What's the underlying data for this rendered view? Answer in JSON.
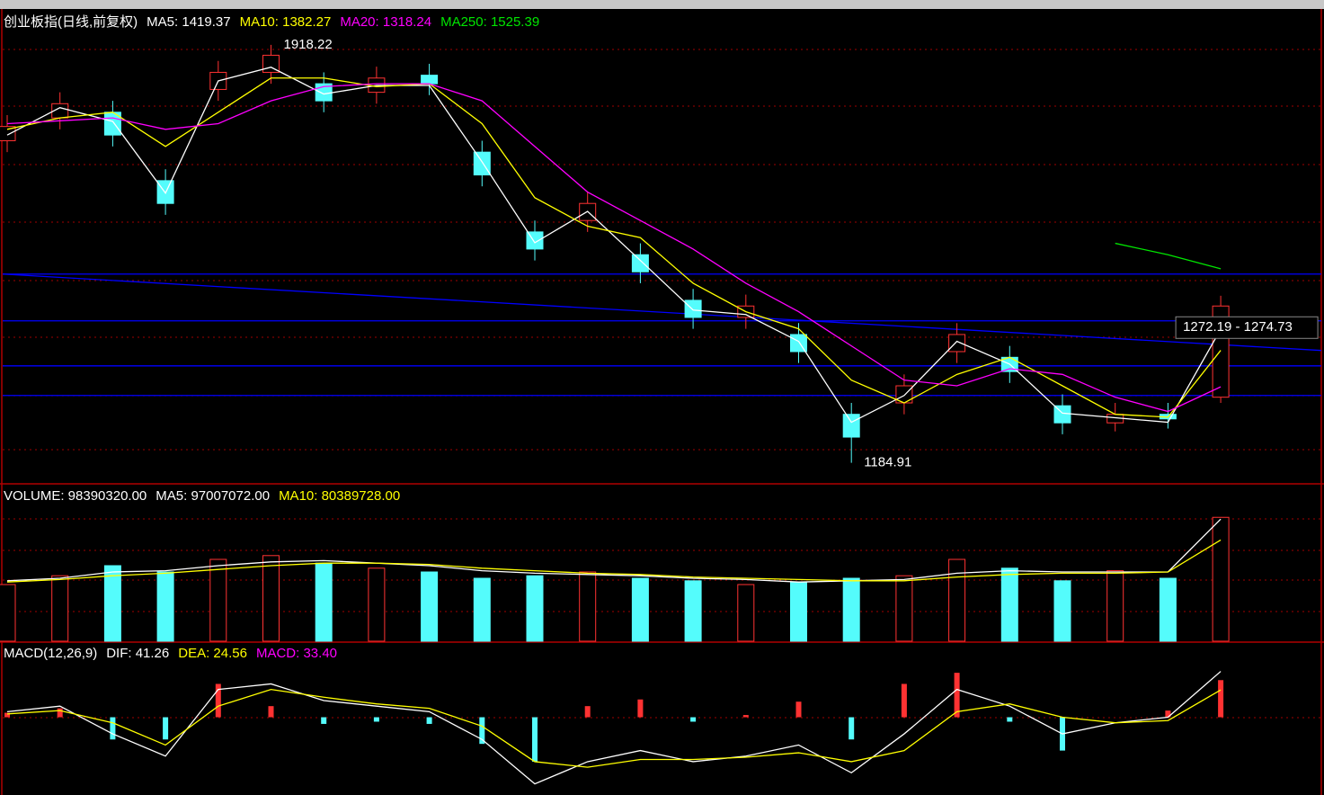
{
  "chart_data": [
    {
      "type": "candlestick",
      "title": "创业板指(日线,前复权)",
      "open": [
        1750,
        1790,
        1800,
        1680,
        1840,
        1870,
        1850,
        1835,
        1865,
        1730,
        1590,
        1610,
        1550,
        1470,
        1440,
        1410,
        1270,
        1290,
        1380,
        1370,
        1285,
        1255,
        1270,
        1300
      ],
      "high": [
        1795,
        1835,
        1820,
        1700,
        1890,
        1918.22,
        1870,
        1880,
        1885,
        1750,
        1610,
        1660,
        1570,
        1490,
        1480,
        1430,
        1290,
        1340,
        1430,
        1390,
        1305,
        1290,
        1290,
        1478
      ],
      "low": [
        1730,
        1770,
        1740,
        1620,
        1820,
        1850,
        1800,
        1815,
        1830,
        1670,
        1540,
        1590,
        1500,
        1420,
        1420,
        1360,
        1184.91,
        1270,
        1360,
        1325,
        1235,
        1240,
        1245,
        1290
      ],
      "close": [
        1775,
        1815,
        1760,
        1640,
        1870,
        1900,
        1820,
        1860,
        1850,
        1690,
        1560,
        1640,
        1520,
        1440,
        1460,
        1380,
        1230,
        1320,
        1410,
        1345,
        1255,
        1270,
        1262,
        1460
      ],
      "up_color": "#ff3232",
      "down_color": "#54fcfc",
      "series": [
        {
          "name": "MA5: 1419.37",
          "color": "#ffffff",
          "values": [
            1760,
            1808,
            1784,
            1658,
            1855,
            1879,
            1832,
            1847,
            1847,
            1713,
            1571,
            1626,
            1540,
            1453,
            1445,
            1398,
            1256,
            1303,
            1398,
            1358,
            1272,
            1264,
            1256,
            1419.37
          ]
        },
        {
          "name": "MA10: 1382.27",
          "color": "#ffff00",
          "values": [
            1770,
            1790,
            1800,
            1740,
            1800,
            1860,
            1860,
            1845,
            1850,
            1780,
            1650,
            1600,
            1580,
            1500,
            1450,
            1420,
            1330,
            1290,
            1340,
            1370,
            1320,
            1270,
            1265,
            1382.27
          ]
        },
        {
          "name": "MA20: 1318.24",
          "color": "#ff00ff",
          "values": [
            1780,
            1785,
            1790,
            1770,
            1780,
            1820,
            1845,
            1850,
            1850,
            1820,
            1740,
            1660,
            1610,
            1560,
            1500,
            1450,
            1390,
            1330,
            1320,
            1350,
            1340,
            1300,
            1275,
            1318.24
          ]
        },
        {
          "name": "MA250: 1525.39",
          "color": "#00e600",
          "values": [
            null,
            null,
            null,
            null,
            null,
            null,
            null,
            null,
            null,
            null,
            null,
            null,
            null,
            null,
            null,
            null,
            null,
            null,
            null,
            null,
            null,
            1570,
            1550,
            1525.39
          ]
        }
      ],
      "hlines": [
        1516,
        1434,
        1355,
        1303
      ],
      "trend_line": [
        1516,
        1382
      ],
      "line_color": "#0000ff",
      "annotations": [
        "1918.22",
        "1184.91",
        "1272.19 - 1274.73"
      ],
      "ylim": [
        1148,
        1978
      ]
    },
    {
      "type": "bar",
      "title": "VOLUME: 98390320.00",
      "values": [
        45000000,
        52000000,
        60000000,
        55000000,
        65000000,
        68000000,
        62000000,
        58000000,
        55000000,
        50000000,
        52000000,
        55000000,
        50000000,
        48000000,
        45000000,
        47000000,
        50000000,
        52000000,
        65000000,
        58000000,
        48000000,
        56000000,
        50000000,
        98390320
      ],
      "series": [
        {
          "name": "MA5: 97007072.00",
          "color": "#ffffff",
          "values": [
            48000000,
            50000000,
            55000000,
            56000000,
            60000000,
            63000000,
            64000000,
            62000000,
            60000000,
            56000000,
            54000000,
            53000000,
            52000000,
            50000000,
            49000000,
            47000000,
            48000000,
            49000000,
            54000000,
            56000000,
            55000000,
            55000000,
            55000000,
            97007072
          ]
        },
        {
          "name": "MA10: 80389728.00",
          "color": "#ffff00",
          "values": [
            47000000,
            49000000,
            52000000,
            54000000,
            57000000,
            60000000,
            62000000,
            62000000,
            61000000,
            58000000,
            56000000,
            54000000,
            53000000,
            51000000,
            50000000,
            49000000,
            48000000,
            48000000,
            51000000,
            53000000,
            54000000,
            54000000,
            55000000,
            80389728
          ]
        }
      ],
      "ylim": [
        0,
        120000000
      ]
    },
    {
      "type": "macd",
      "title": "MACD(12,26,9)",
      "values": [
        4,
        8,
        -20,
        -20,
        30,
        10,
        -6,
        -4,
        -6,
        -24,
        -40,
        10,
        16,
        -4,
        2,
        14,
        -20,
        30,
        40,
        -4,
        -30,
        0,
        6,
        33.4
      ],
      "value_name": "MACD: 33.40",
      "value_color": "#ff00ff",
      "series": [
        {
          "name": "DIF: 41.26",
          "color": "#ffffff",
          "values": [
            5,
            10,
            -15,
            -35,
            25,
            30,
            15,
            10,
            5,
            -20,
            -60,
            -40,
            -30,
            -40,
            -35,
            -25,
            -50,
            -15,
            25,
            10,
            -15,
            -5,
            0,
            41.26
          ]
        },
        {
          "name": "DEA: 24.56",
          "color": "#ffff00",
          "values": [
            3,
            6,
            -5,
            -25,
            10,
            25,
            18,
            12,
            8,
            -8,
            -40,
            -45,
            -38,
            -38,
            -36,
            -32,
            -40,
            -30,
            5,
            12,
            0,
            -5,
            -3,
            24.56
          ]
        }
      ],
      "ylim": [
        -70,
        66
      ]
    }
  ]
}
